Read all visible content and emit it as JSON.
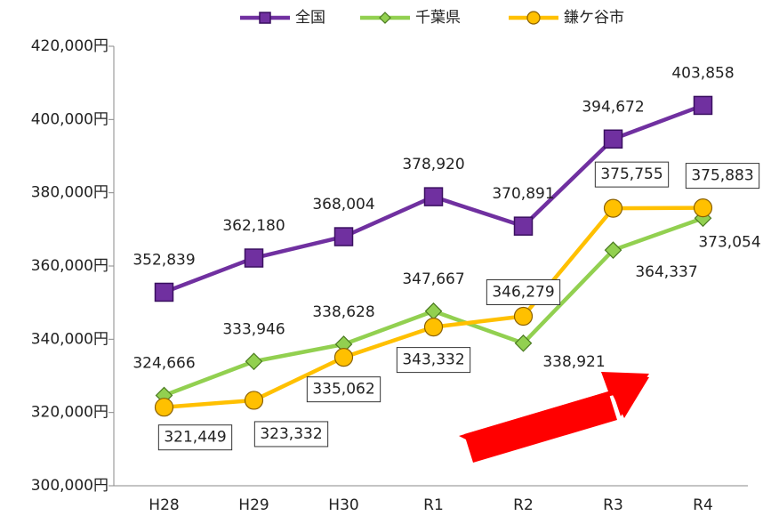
{
  "chart_data": {
    "type": "line",
    "categories": [
      "H28",
      "H29",
      "H30",
      "R1",
      "R2",
      "R3",
      "R4"
    ],
    "series": [
      {
        "name": "全国",
        "color": "#7030a0",
        "marker": "square",
        "values": [
          352839,
          362180,
          368004,
          378920,
          370891,
          394672,
          403858
        ],
        "value_labels": [
          "352,839",
          "362,180",
          "368,004",
          "378,920",
          "370,891",
          "394,672",
          "403,858"
        ]
      },
      {
        "name": "千葉県",
        "color": "#92d050",
        "marker": "diamond",
        "values": [
          324666,
          333946,
          338628,
          347667,
          338921,
          364337,
          373054
        ],
        "value_labels": [
          "324,666",
          "333,946",
          "338,628",
          "347,667",
          "338,921",
          "364,337",
          "373,054"
        ]
      },
      {
        "name": "鎌ケ谷市",
        "color": "#ffc000",
        "marker": "circle",
        "values": [
          321449,
          323332,
          335062,
          343332,
          346279,
          375755,
          375883
        ],
        "value_labels": [
          "321,449",
          "323,332",
          "335,062",
          "343,332",
          "346,279",
          "375,755",
          "375,883"
        ]
      }
    ],
    "ylim": [
      300000,
      420000
    ],
    "yticks": [
      {
        "value": 300000,
        "label": "300,000円"
      },
      {
        "value": 320000,
        "label": "320,000円"
      },
      {
        "value": 340000,
        "label": "340,000円"
      },
      {
        "value": 360000,
        "label": "360,000円"
      },
      {
        "value": 380000,
        "label": "380,000円"
      },
      {
        "value": 400000,
        "label": "400,000円"
      },
      {
        "value": 420000,
        "label": "420,000円"
      }
    ],
    "legend": "top"
  }
}
